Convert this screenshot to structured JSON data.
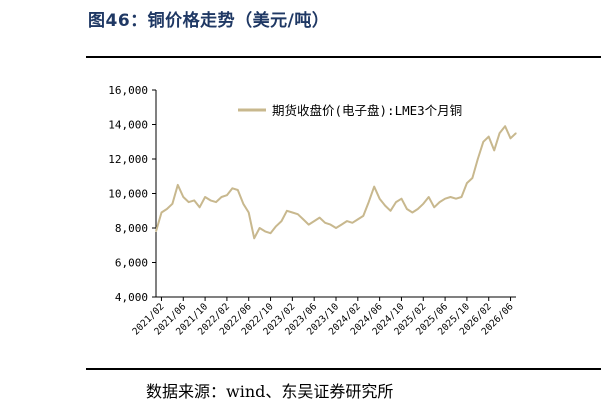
{
  "figure": {
    "title": "图46：铜价格走势（美元/吨）",
    "source": "数据来源：wind、东吴证券研究所"
  },
  "colors": {
    "series": "#c8b88e",
    "axis": "#000000",
    "title": "#1f3864"
  },
  "chart_data": {
    "type": "line",
    "title": "",
    "xlabel": "",
    "ylabel": "",
    "ylim": [
      4000,
      16000
    ],
    "yticks": [
      "4,000",
      "6,000",
      "8,000",
      "10,000",
      "12,000",
      "14,000",
      "16,000"
    ],
    "xticks": [
      "2021/02",
      "2021/06",
      "2021/10",
      "2022/02",
      "2022/06",
      "2022/10",
      "2023/02",
      "2023/06",
      "2023/10",
      "2024/02",
      "2024/06",
      "2024/10",
      "2025/02",
      "2025/06",
      "2025/10",
      "2026/02",
      "2026/06"
    ],
    "grid": false,
    "legend": "top-right",
    "series": [
      {
        "name": "期货收盘价(电子盘):LME3个月铜",
        "x": [
          "2021/01",
          "2021/02",
          "2021/03",
          "2021/04",
          "2021/05",
          "2021/06",
          "2021/07",
          "2021/08",
          "2021/09",
          "2021/10",
          "2021/11",
          "2021/12",
          "2022/01",
          "2022/02",
          "2022/03",
          "2022/04",
          "2022/05",
          "2022/06",
          "2022/07",
          "2022/08",
          "2022/09",
          "2022/10",
          "2022/11",
          "2022/12",
          "2023/01",
          "2023/02",
          "2023/03",
          "2023/04",
          "2023/05",
          "2023/06",
          "2023/07",
          "2023/08",
          "2023/09",
          "2023/10",
          "2023/11",
          "2023/12",
          "2024/01",
          "2024/02",
          "2024/03",
          "2024/04",
          "2024/05",
          "2024/06",
          "2024/07",
          "2024/08",
          "2024/09",
          "2024/10",
          "2024/11",
          "2024/12",
          "2025/01",
          "2025/02",
          "2025/03",
          "2025/04",
          "2025/05",
          "2025/06",
          "2025/07",
          "2025/08",
          "2025/09",
          "2025/10",
          "2025/11",
          "2025/12",
          "2026/01",
          "2026/02",
          "2026/03",
          "2026/04",
          "2026/05",
          "2026/06",
          "2026/07"
        ],
        "values": [
          7800,
          8900,
          9100,
          9400,
          10500,
          9800,
          9500,
          9600,
          9200,
          9800,
          9600,
          9500,
          9800,
          9900,
          10300,
          10200,
          9400,
          8900,
          7400,
          8000,
          7800,
          7700,
          8100,
          8400,
          9000,
          8900,
          8800,
          8500,
          8200,
          8400,
          8600,
          8300,
          8200,
          8000,
          8200,
          8400,
          8300,
          8500,
          8700,
          9500,
          10400,
          9700,
          9300,
          9000,
          9500,
          9700,
          9100,
          8900,
          9100,
          9400,
          9800,
          9200,
          9500,
          9700,
          9800,
          9700,
          9800,
          10600,
          10900,
          12000,
          13000,
          13300,
          12500,
          13500,
          13900,
          13200,
          13500
        ]
      }
    ]
  }
}
